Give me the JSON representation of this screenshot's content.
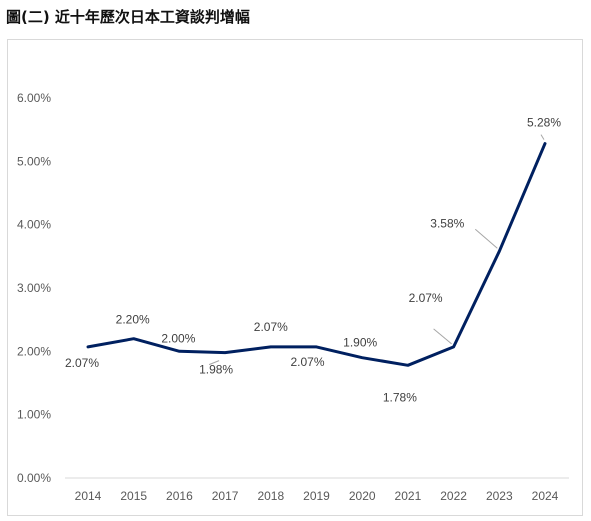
{
  "figure": {
    "title": "圖(二) 近十年歷次日本工資談判增幅"
  },
  "chart_data": {
    "type": "line",
    "title": "",
    "xlabel": "",
    "ylabel": "",
    "categories": [
      "2014",
      "2015",
      "2016",
      "2017",
      "2018",
      "2019",
      "2020",
      "2021",
      "2022",
      "2023",
      "2024"
    ],
    "series": [
      {
        "values": [
          2.07,
          2.2,
          2.0,
          1.98,
          2.07,
          2.07,
          1.9,
          1.78,
          2.07,
          3.58,
          5.28
        ],
        "data_labels": [
          "2.07%",
          "2.20%",
          "2.00%",
          "1.98%",
          "2.07%",
          "2.07%",
          "1.90%",
          "1.78%",
          "2.07%",
          "3.58%",
          "5.28%"
        ],
        "color": "#002060"
      }
    ],
    "ylim": [
      0,
      6
    ],
    "yticks": [
      "0.00%",
      "1.00%",
      "2.00%",
      "3.00%",
      "4.00%",
      "5.00%",
      "6.00%"
    ],
    "grid": false,
    "legend": "none"
  }
}
